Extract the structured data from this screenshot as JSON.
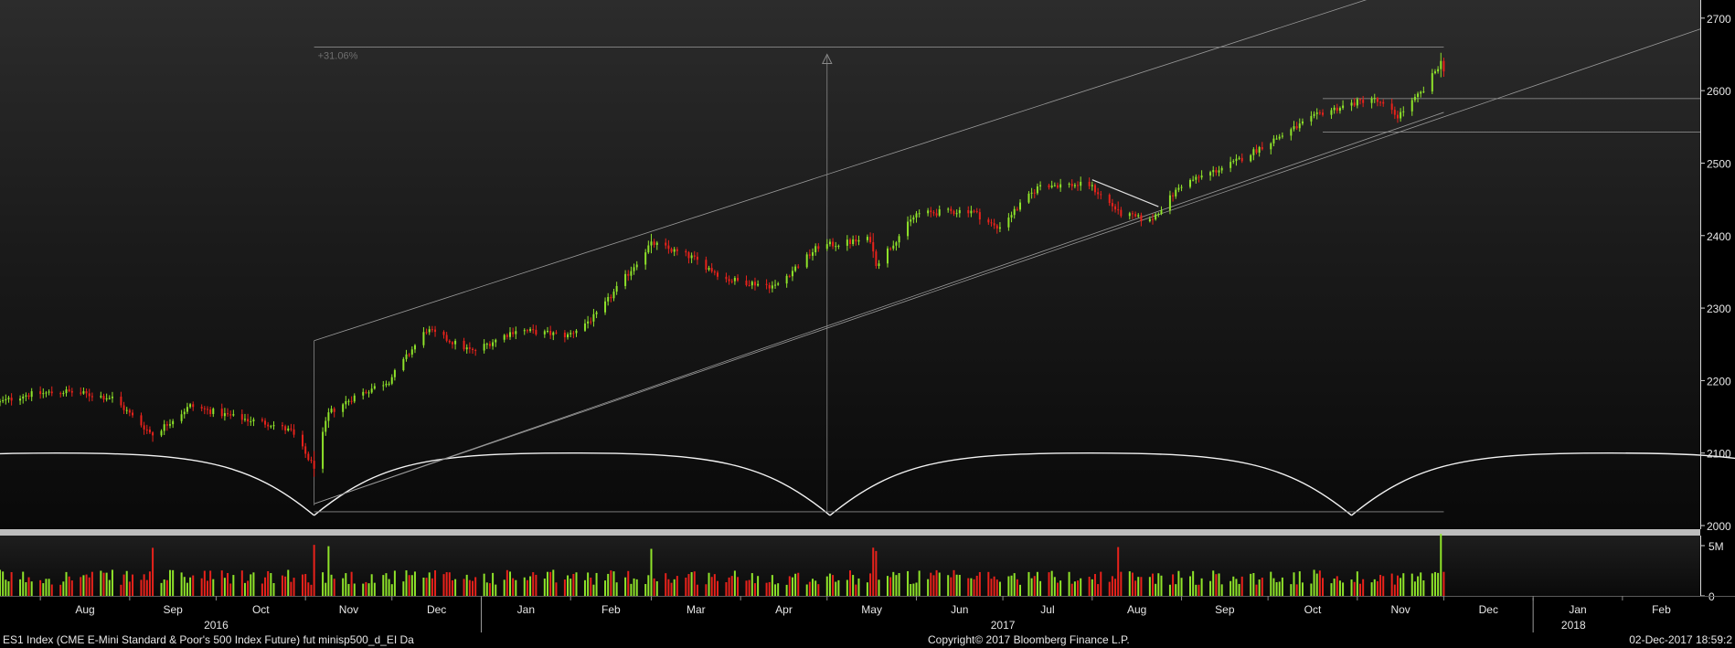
{
  "footer": {
    "security": "ES1 Index (CME E-Mini Standard & Poor's 500 Index Future) fut minisp500_d_EI  Da",
    "copyright": "Copyright© 2017 Bloomberg Finance L.P.",
    "timestamp": "02-Dec-2017 18:59:2"
  },
  "colors": {
    "up": "#8fe32a",
    "down": "#e8221b",
    "background": "#000000",
    "line": "#d0d0d0"
  },
  "chart_data": {
    "type": "candlestick",
    "instrument": "ES1 Index",
    "price_axis": {
      "ylim": [
        1995,
        2725
      ],
      "ticks": [
        2000,
        2100,
        2200,
        2300,
        2400,
        2500,
        2600,
        2700
      ],
      "tick_labels": [
        "2000",
        "2100",
        "2200",
        "2300",
        "2400",
        "2500",
        "2600",
        "2700"
      ]
    },
    "volume_axis": {
      "ylim": [
        0,
        6000000
      ],
      "ticks": [
        0,
        5000000
      ],
      "tick_labels": [
        "0",
        "5M"
      ]
    },
    "time_axis": {
      "start": "2016-07-18",
      "end": "2018-02-28",
      "months": [
        {
          "label": "Aug",
          "date": "2016-08-01"
        },
        {
          "label": "Sep",
          "date": "2016-09-01"
        },
        {
          "label": "Oct",
          "date": "2016-10-01"
        },
        {
          "label": "Nov",
          "date": "2016-11-01"
        },
        {
          "label": "Dec",
          "date": "2016-12-01"
        },
        {
          "label": "Jan",
          "date": "2017-01-01"
        },
        {
          "label": "Feb",
          "date": "2017-02-01"
        },
        {
          "label": "Mar",
          "date": "2017-03-01"
        },
        {
          "label": "Apr",
          "date": "2017-04-01"
        },
        {
          "label": "May",
          "date": "2017-05-01"
        },
        {
          "label": "Jun",
          "date": "2017-06-01"
        },
        {
          "label": "Jul",
          "date": "2017-07-01"
        },
        {
          "label": "Aug",
          "date": "2017-08-01"
        },
        {
          "label": "Sep",
          "date": "2017-09-01"
        },
        {
          "label": "Oct",
          "date": "2017-10-01"
        },
        {
          "label": "Nov",
          "date": "2017-11-01"
        },
        {
          "label": "Dec",
          "date": "2017-12-01"
        },
        {
          "label": "Jan",
          "date": "2018-01-01"
        },
        {
          "label": "Feb",
          "date": "2018-02-01"
        }
      ],
      "years": [
        {
          "label": "2016",
          "date": "2016-10-01"
        },
        {
          "label": "2017",
          "date": "2017-07-01"
        },
        {
          "label": "2018",
          "date": "2018-01-15"
        }
      ],
      "year_dividers": [
        "2017-01-01",
        "2018-01-01"
      ]
    },
    "price_anchors": [
      [
        "2016-07-18",
        2170
      ],
      [
        "2016-07-26",
        2180
      ],
      [
        "2016-08-10",
        2185
      ],
      [
        "2016-08-26",
        2176
      ],
      [
        "2016-09-09",
        2125
      ],
      [
        "2016-09-22",
        2165
      ],
      [
        "2016-10-07",
        2150
      ],
      [
        "2016-10-20",
        2140
      ],
      [
        "2016-10-27",
        2130
      ],
      [
        "2016-11-04",
        2080
      ],
      [
        "2016-11-09",
        2155
      ],
      [
        "2016-11-18",
        2178
      ],
      [
        "2016-11-30",
        2200
      ],
      [
        "2016-12-13",
        2270
      ],
      [
        "2016-12-29",
        2240
      ],
      [
        "2017-01-13",
        2270
      ],
      [
        "2017-01-31",
        2262
      ],
      [
        "2017-02-10",
        2290
      ],
      [
        "2017-03-01",
        2390
      ],
      [
        "2017-03-15",
        2370
      ],
      [
        "2017-03-27",
        2340
      ],
      [
        "2017-04-13",
        2330
      ],
      [
        "2017-04-28",
        2385
      ],
      [
        "2017-05-16",
        2395
      ],
      [
        "2017-05-18",
        2360
      ],
      [
        "2017-06-01",
        2430
      ],
      [
        "2017-06-20",
        2435
      ],
      [
        "2017-06-29",
        2410
      ],
      [
        "2017-07-14",
        2470
      ],
      [
        "2017-07-31",
        2470
      ],
      [
        "2017-08-11",
        2430
      ],
      [
        "2017-08-21",
        2420
      ],
      [
        "2017-09-01",
        2470
      ],
      [
        "2017-09-19",
        2500
      ],
      [
        "2017-10-02",
        2530
      ],
      [
        "2017-10-20",
        2570
      ],
      [
        "2017-11-06",
        2590
      ],
      [
        "2017-11-15",
        2565
      ],
      [
        "2017-11-24",
        2600
      ],
      [
        "2017-11-30",
        2640
      ],
      [
        "2017-12-01",
        2630
      ]
    ],
    "major_days": [
      "2016-09-09",
      "2016-11-04",
      "2016-11-09",
      "2017-03-01",
      "2017-05-17",
      "2017-05-18",
      "2017-08-10",
      "2017-11-30"
    ],
    "annotations": {
      "percent_change_label": "+31.06%",
      "measure_low": {
        "date": "2016-11-04",
        "price": 2028
      },
      "measure_high": {
        "date": "2017-12-01",
        "price": 2660
      },
      "arrow_date": "2017-05-01",
      "channel_upper": [
        [
          "2016-11-04",
          2255
        ],
        [
          "2017-12-01",
          2760
        ]
      ],
      "channel_lower": [
        [
          "2016-11-04",
          2030
        ],
        [
          "2017-12-01",
          2570
        ]
      ],
      "lower_line_extension": [
        [
          "2016-11-04",
          2030
        ],
        [
          "2018-02-28",
          2685
        ]
      ],
      "horizontal_levels": [
        2589,
        2543
      ],
      "horizontal_levels_start": "2017-10-20",
      "cycle_lows": [
        "2016-11-04",
        "2017-05-02",
        "2017-10-30",
        "2018-04-28"
      ],
      "cycle_top": 2100,
      "cycle_bottom": 2014
    }
  }
}
